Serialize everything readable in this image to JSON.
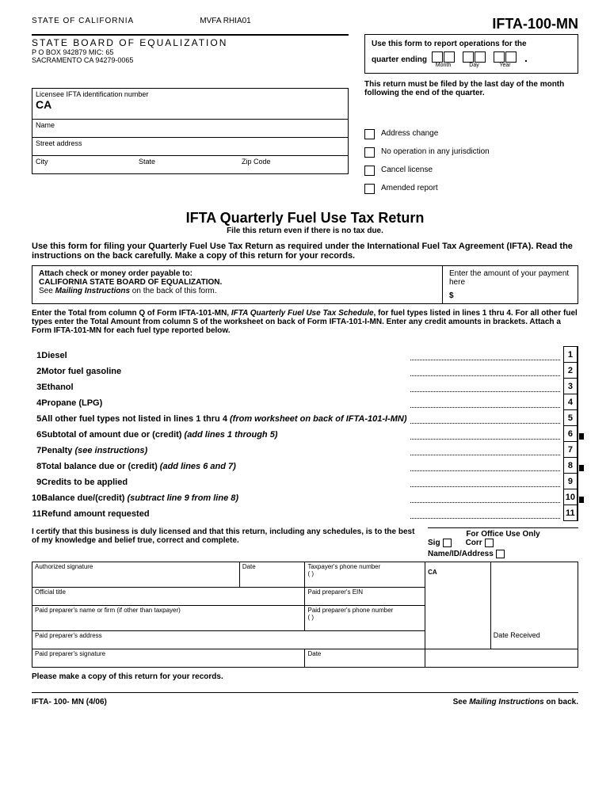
{
  "header": {
    "state": "STATE OF CALIFORNIA",
    "mvfa": "MVFA RHIA01",
    "form_id": "IFTA-100-MN",
    "board": "STATE BOARD OF EQUALIZATION",
    "addr1": "P O  BOX 942879 MIC: 65",
    "addr2": "SACRAMENTO  CA  94279-0065"
  },
  "quarter": {
    "line1": "Use this form to report operations for the",
    "line2": "quarter ending",
    "month": "Month",
    "day": "Day",
    "year": "Year"
  },
  "filing_note": "This return must be filed by the last day of the month following the end of the quarter.",
  "licensee": {
    "id_label": "Licensee IFTA identification number",
    "ca": "CA",
    "name": "Name",
    "street": "Street address",
    "city": "City",
    "state": "State",
    "zip": "Zip Code"
  },
  "checkboxes": {
    "addr_change": "Address change",
    "no_op": "No operation in any jurisdiction",
    "cancel": "Cancel license",
    "amended": "Amended report"
  },
  "title": "IFTA Quarterly Fuel Use Tax Return",
  "subtitle": "File this return even if there is no tax due.",
  "instructions": "Use this form for filing your Quarterly Fuel Use Tax Return as required under the International Fuel Tax Agreement (IFTA). Read the instructions on the back carefully.  Make a copy of this return for your records.",
  "payment": {
    "attach": "Attach check or money order payable to:",
    "payee": "CALIFORNIA STATE BOARD OF EQUALIZATION.",
    "see": "See ",
    "mailing": "Mailing Instructions",
    "back": " on the back of this form.",
    "enter": "Enter the amount of your payment here",
    "dollar": "$"
  },
  "enter_text1": "Enter the Total from column Q of Form IFTA-101-MN, ",
  "enter_text1_italic": " IFTA Quarterly Fuel Use Tax Schedule",
  "enter_text1b": ", for fuel types listed in lines 1 thru 4. For all other fuel types enter the Total Amount from column S of the worksheet on back of Form IFTA-101-I-MN. Enter any credit amounts in brackets. Attach a Form IFTA-101-MN for each fuel type reported below.",
  "lines": [
    {
      "n": "1",
      "label": "Diesel",
      "dark": false
    },
    {
      "n": "2",
      "label": "Motor fuel gasoline",
      "dark": false
    },
    {
      "n": "3",
      "label": "Ethanol",
      "dark": false
    },
    {
      "n": "4",
      "label": "Propane (LPG)",
      "dark": false
    },
    {
      "n": "5",
      "label": "All other fuel types not listed in lines 1 thru 4",
      "suffix_italic": " (from worksheet on back of IFTA-101-I-MN)",
      "dark": false
    },
    {
      "n": "6",
      "label": "Subtotal of amount due or (credit)",
      "suffix_italic": " (add lines 1 through 5)",
      "dark": true
    },
    {
      "n": "7",
      "label": "Penalty",
      "suffix_italic": " (see instructions)",
      "dark": false
    },
    {
      "n": "8",
      "label": "Total balance due or (credit)",
      "suffix_italic": " (add lines 6 and 7)",
      "dark": true
    },
    {
      "n": "9",
      "label": "Credits to be applied",
      "dark": false
    },
    {
      "n": "10",
      "label": "Balance due/(credit)",
      "suffix_italic": " (subtract line 9 from line 8)",
      "dark": true
    },
    {
      "n": "11",
      "label": "Refund amount requested",
      "dark": false
    }
  ],
  "certify": "I certify that this business is duly licensed and that this return, including any schedules, is to the best of my knowledge and belief true, correct and complete.",
  "office": {
    "title": "For Office Use Only",
    "sig": "Sig",
    "corr": "Corr",
    "nameid": "Name/ID/Address",
    "ca": "CA",
    "date_rec": "Date Received"
  },
  "sig": {
    "auth": "Authorized signature",
    "date": "Date",
    "phone": "Taxpayer's phone number\n(          )",
    "title": "Official title",
    "ein": "Paid preparer's EIN",
    "prep_name": "Paid preparer's name or firm (if other than taxpayer)",
    "prep_phone": "Paid preparer's phone number\n(          )",
    "prep_addr": "Paid preparer's address",
    "prep_sig": "Paid preparer's signature"
  },
  "copy_note": "Please make a copy of this return for your records.",
  "footer": {
    "form": "IFTA- 100- MN (4/06)",
    "see": "See ",
    "mailing": "Mailing Instructions",
    "back": " on  back."
  }
}
